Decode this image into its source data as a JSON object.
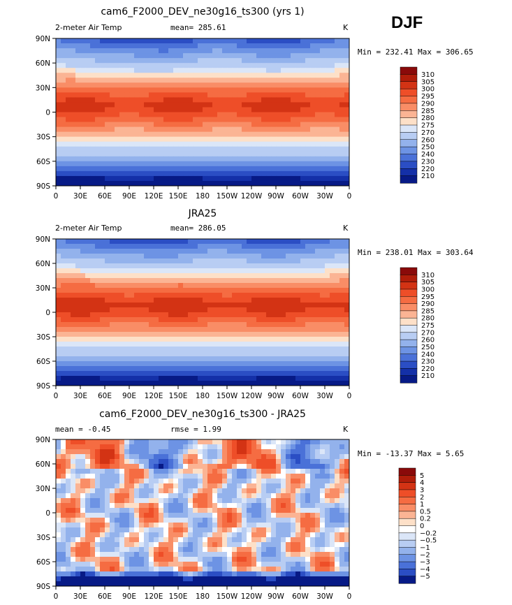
{
  "season": "DJF",
  "chart_data": [
    {
      "type": "heatmap",
      "title": "cam6_F2000_DEV_ne30g16_ts300 (yrs 1)",
      "left_label": "2-meter Air Temp",
      "stat_text": "mean= 285.61",
      "units": "K",
      "minmax_text": "Min = 232.41 Max = 306.65",
      "x_ticks": [
        "0",
        "30E",
        "60E",
        "90E",
        "120E",
        "150E",
        "180",
        "150W",
        "120W",
        "90W",
        "60W",
        "30W",
        "0"
      ],
      "y_ticks": [
        "90N",
        "60N",
        "30N",
        "0",
        "30S",
        "60S",
        "90S"
      ],
      "levels": [
        "310",
        "305",
        "300",
        "295",
        "290",
        "285",
        "280",
        "275",
        "270",
        "260",
        "250",
        "240",
        "230",
        "220",
        "210"
      ],
      "colors": [
        "#8a0a0a",
        "#b01d0a",
        "#d33314",
        "#ee4e28",
        "#f56c42",
        "#f98d66",
        "#fbb494",
        "#fde0c8",
        "#dbe6f8",
        "#b8cdf3",
        "#93b2ec",
        "#6d93e4",
        "#4a71d8",
        "#2b4ec4",
        "#1430a8",
        "#071a86"
      ],
      "field": "abs",
      "bias": 0
    },
    {
      "type": "heatmap",
      "title": "JRA25",
      "left_label": "2-meter Air Temp",
      "stat_text": "mean= 286.05",
      "units": "K",
      "minmax_text": "Min = 238.01 Max = 303.64",
      "x_ticks": [
        "0",
        "30E",
        "60E",
        "90E",
        "120E",
        "150E",
        "180",
        "150W",
        "120W",
        "90W",
        "60W",
        "30W",
        "0"
      ],
      "y_ticks": [
        "90N",
        "60N",
        "30N",
        "0",
        "30S",
        "60S",
        "90S"
      ],
      "levels": [
        "310",
        "305",
        "300",
        "295",
        "290",
        "285",
        "280",
        "275",
        "270",
        "260",
        "250",
        "240",
        "230",
        "220",
        "210"
      ],
      "colors": [
        "#8a0a0a",
        "#b01d0a",
        "#d33314",
        "#ee4e28",
        "#f56c42",
        "#f98d66",
        "#fbb494",
        "#fde0c8",
        "#dbe6f8",
        "#b8cdf3",
        "#93b2ec",
        "#6d93e4",
        "#4a71d8",
        "#2b4ec4",
        "#1430a8",
        "#071a86"
      ],
      "field": "abs",
      "bias": 1
    },
    {
      "type": "heatmap",
      "title": "cam6_F2000_DEV_ne30g16_ts300 - JRA25",
      "left_label": "mean = -0.45",
      "stat_text": "rmse = 1.99",
      "units": "K",
      "minmax_text": "Min = -13.37 Max = 5.65",
      "x_ticks": [
        "0",
        "30E",
        "60E",
        "90E",
        "120E",
        "150E",
        "180",
        "150W",
        "120W",
        "90W",
        "60W",
        "30W",
        "0"
      ],
      "y_ticks": [
        "90N",
        "60N",
        "30N",
        "0",
        "30S",
        "60S",
        "90S"
      ],
      "levels": [
        "5",
        "4",
        "3",
        "2",
        "1",
        "0.5",
        "0.2",
        "0",
        "−0.2",
        "−0.5",
        "−1",
        "−2",
        "−3",
        "−4",
        "−5"
      ],
      "colors": [
        "#8a0a0a",
        "#b01d0a",
        "#d33314",
        "#ee4e28",
        "#f56c42",
        "#f98d66",
        "#fbb494",
        "#fde0c8",
        "#ffffff",
        "#dbe6f8",
        "#b8cdf3",
        "#93b2ec",
        "#6d93e4",
        "#4a71d8",
        "#2b4ec4",
        "#071a86"
      ],
      "field": "diff",
      "bias": 0
    }
  ]
}
